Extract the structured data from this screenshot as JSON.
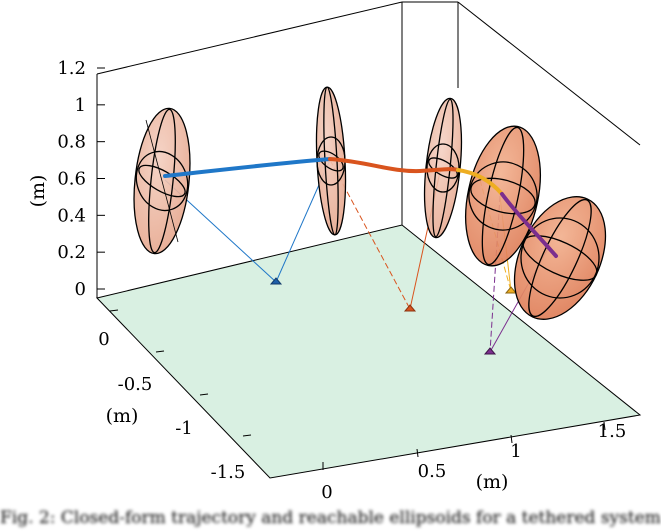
{
  "chart_data": {
    "type": "3d-line",
    "z_axis": {
      "label": "(m)",
      "ticks": [
        "0",
        "0.2",
        "0.4",
        "0.6",
        "0.8",
        "1",
        "1.2"
      ],
      "range": [
        0,
        1.2
      ]
    },
    "y_axis": {
      "label": "(m)",
      "ticks": [
        "0",
        "-0.5",
        "-1",
        "-1.5"
      ]
    },
    "x_axis": {
      "label": "(m)",
      "ticks": [
        "0",
        "0.5",
        "1",
        "1.5"
      ]
    },
    "colors": {
      "ground": "#d9f0e2",
      "ellipsoid_fill": "#e8a98c",
      "ellipsoid_fill_strong": "#e0805c",
      "trajectory_blue": "#1f77c8",
      "trajectory_red": "#d9541e",
      "trajectory_orange": "#eeae22",
      "trajectory_purple": "#7b2e8e"
    },
    "trajectory_segments": [
      "blue",
      "red",
      "orange",
      "purple"
    ],
    "ellipsoids": 5,
    "anchors": 4
  },
  "caption": "Fig. 2:  Closed-form trajectory and reachable ellipsoids for a tethered system"
}
